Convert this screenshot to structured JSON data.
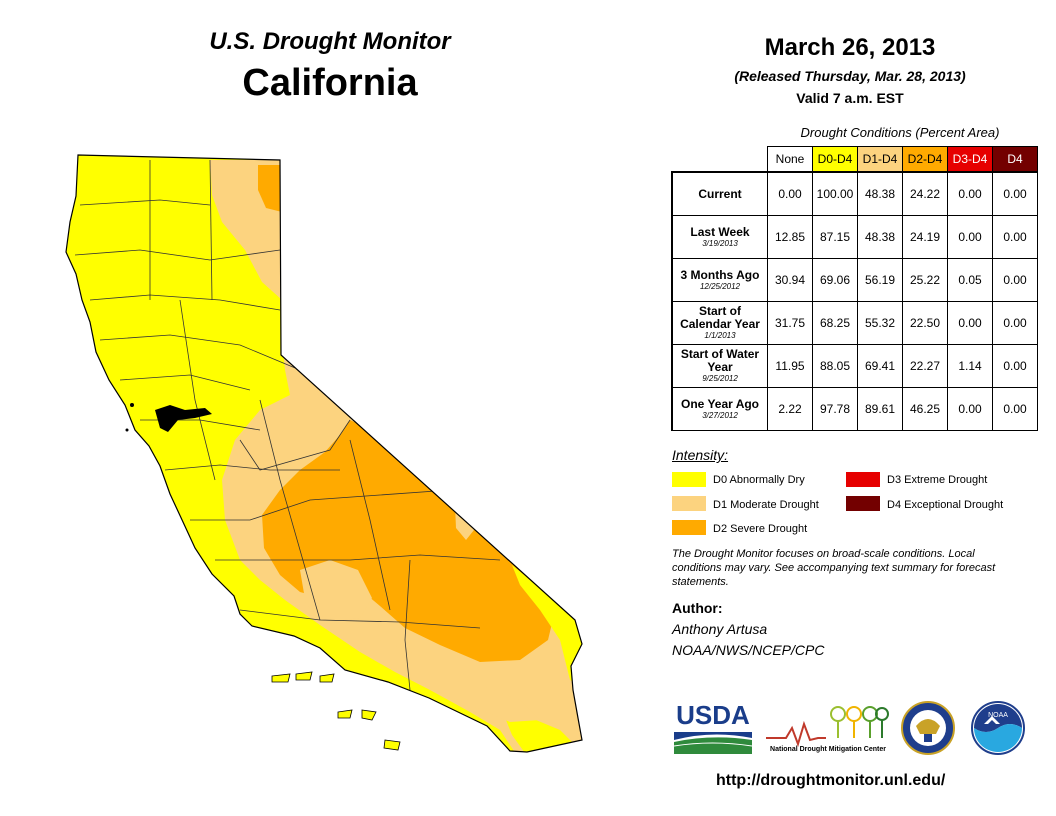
{
  "header": {
    "monitor_title": "U.S. Drought Monitor",
    "state": "California",
    "date": "March 26, 2013",
    "released": "(Released Thursday, Mar. 28, 2013)",
    "valid": "Valid 7 a.m. EST"
  },
  "table": {
    "caption": "Drought Conditions (Percent Area)",
    "columns": [
      {
        "label": "None",
        "bg": "#ffffff",
        "fg": "#000000"
      },
      {
        "label": "D0-D4",
        "bg": "#ffff00",
        "fg": "#000000"
      },
      {
        "label": "D1-D4",
        "bg": "#fcd37f",
        "fg": "#000000"
      },
      {
        "label": "D2-D4",
        "bg": "#ffaa00",
        "fg": "#000000"
      },
      {
        "label": "D3-D4",
        "bg": "#e60000",
        "fg": "#ffffff"
      },
      {
        "label": "D4",
        "bg": "#730000",
        "fg": "#ffffff"
      }
    ],
    "rows": [
      {
        "label": "Current",
        "sub": "",
        "values": [
          "0.00",
          "100.00",
          "48.38",
          "24.22",
          "0.00",
          "0.00"
        ]
      },
      {
        "label": "Last Week",
        "sub": "3/19/2013",
        "values": [
          "12.85",
          "87.15",
          "48.38",
          "24.19",
          "0.00",
          "0.00"
        ]
      },
      {
        "label": "3 Months Ago",
        "sub": "12/25/2012",
        "values": [
          "30.94",
          "69.06",
          "56.19",
          "25.22",
          "0.05",
          "0.00"
        ]
      },
      {
        "label": "Start of Calendar Year",
        "sub": "1/1/2013",
        "values": [
          "31.75",
          "68.25",
          "55.32",
          "22.50",
          "0.00",
          "0.00"
        ]
      },
      {
        "label": "Start of Water Year",
        "sub": "9/25/2012",
        "values": [
          "11.95",
          "88.05",
          "69.41",
          "22.27",
          "1.14",
          "0.00"
        ]
      },
      {
        "label": "One Year Ago",
        "sub": "3/27/2012",
        "values": [
          "2.22",
          "97.78",
          "89.61",
          "46.25",
          "0.00",
          "0.00"
        ]
      }
    ]
  },
  "legend": {
    "title": "Intensity:",
    "items": [
      {
        "code": "D0",
        "label": "D0 Abnormally Dry",
        "color": "#ffff00"
      },
      {
        "code": "D1",
        "label": "D1 Moderate Drought",
        "color": "#fcd37f"
      },
      {
        "code": "D2",
        "label": "D2 Severe Drought",
        "color": "#ffaa00"
      },
      {
        "code": "D3",
        "label": "D3 Extreme Drought",
        "color": "#e60000"
      },
      {
        "code": "D4",
        "label": "D4 Exceptional Drought",
        "color": "#730000"
      }
    ]
  },
  "note": "The Drought Monitor focuses on broad-scale conditions. Local conditions may vary. See accompanying text summary for forecast statements.",
  "author": {
    "heading": "Author:",
    "name": "Anthony Artusa",
    "org": "NOAA/NWS/NCEP/CPC"
  },
  "logos": {
    "usda": "USDA",
    "ndmc": "National Drought Mitigation Center",
    "noaa": "NOAA"
  },
  "url": "http://droughtmonitor.unl.edu/",
  "map": {
    "region": "California",
    "colors": {
      "d0": "#ffff00",
      "d1": "#fcd37f",
      "d2": "#ffaa00",
      "outline": "#000000",
      "bay": "#000000"
    }
  }
}
